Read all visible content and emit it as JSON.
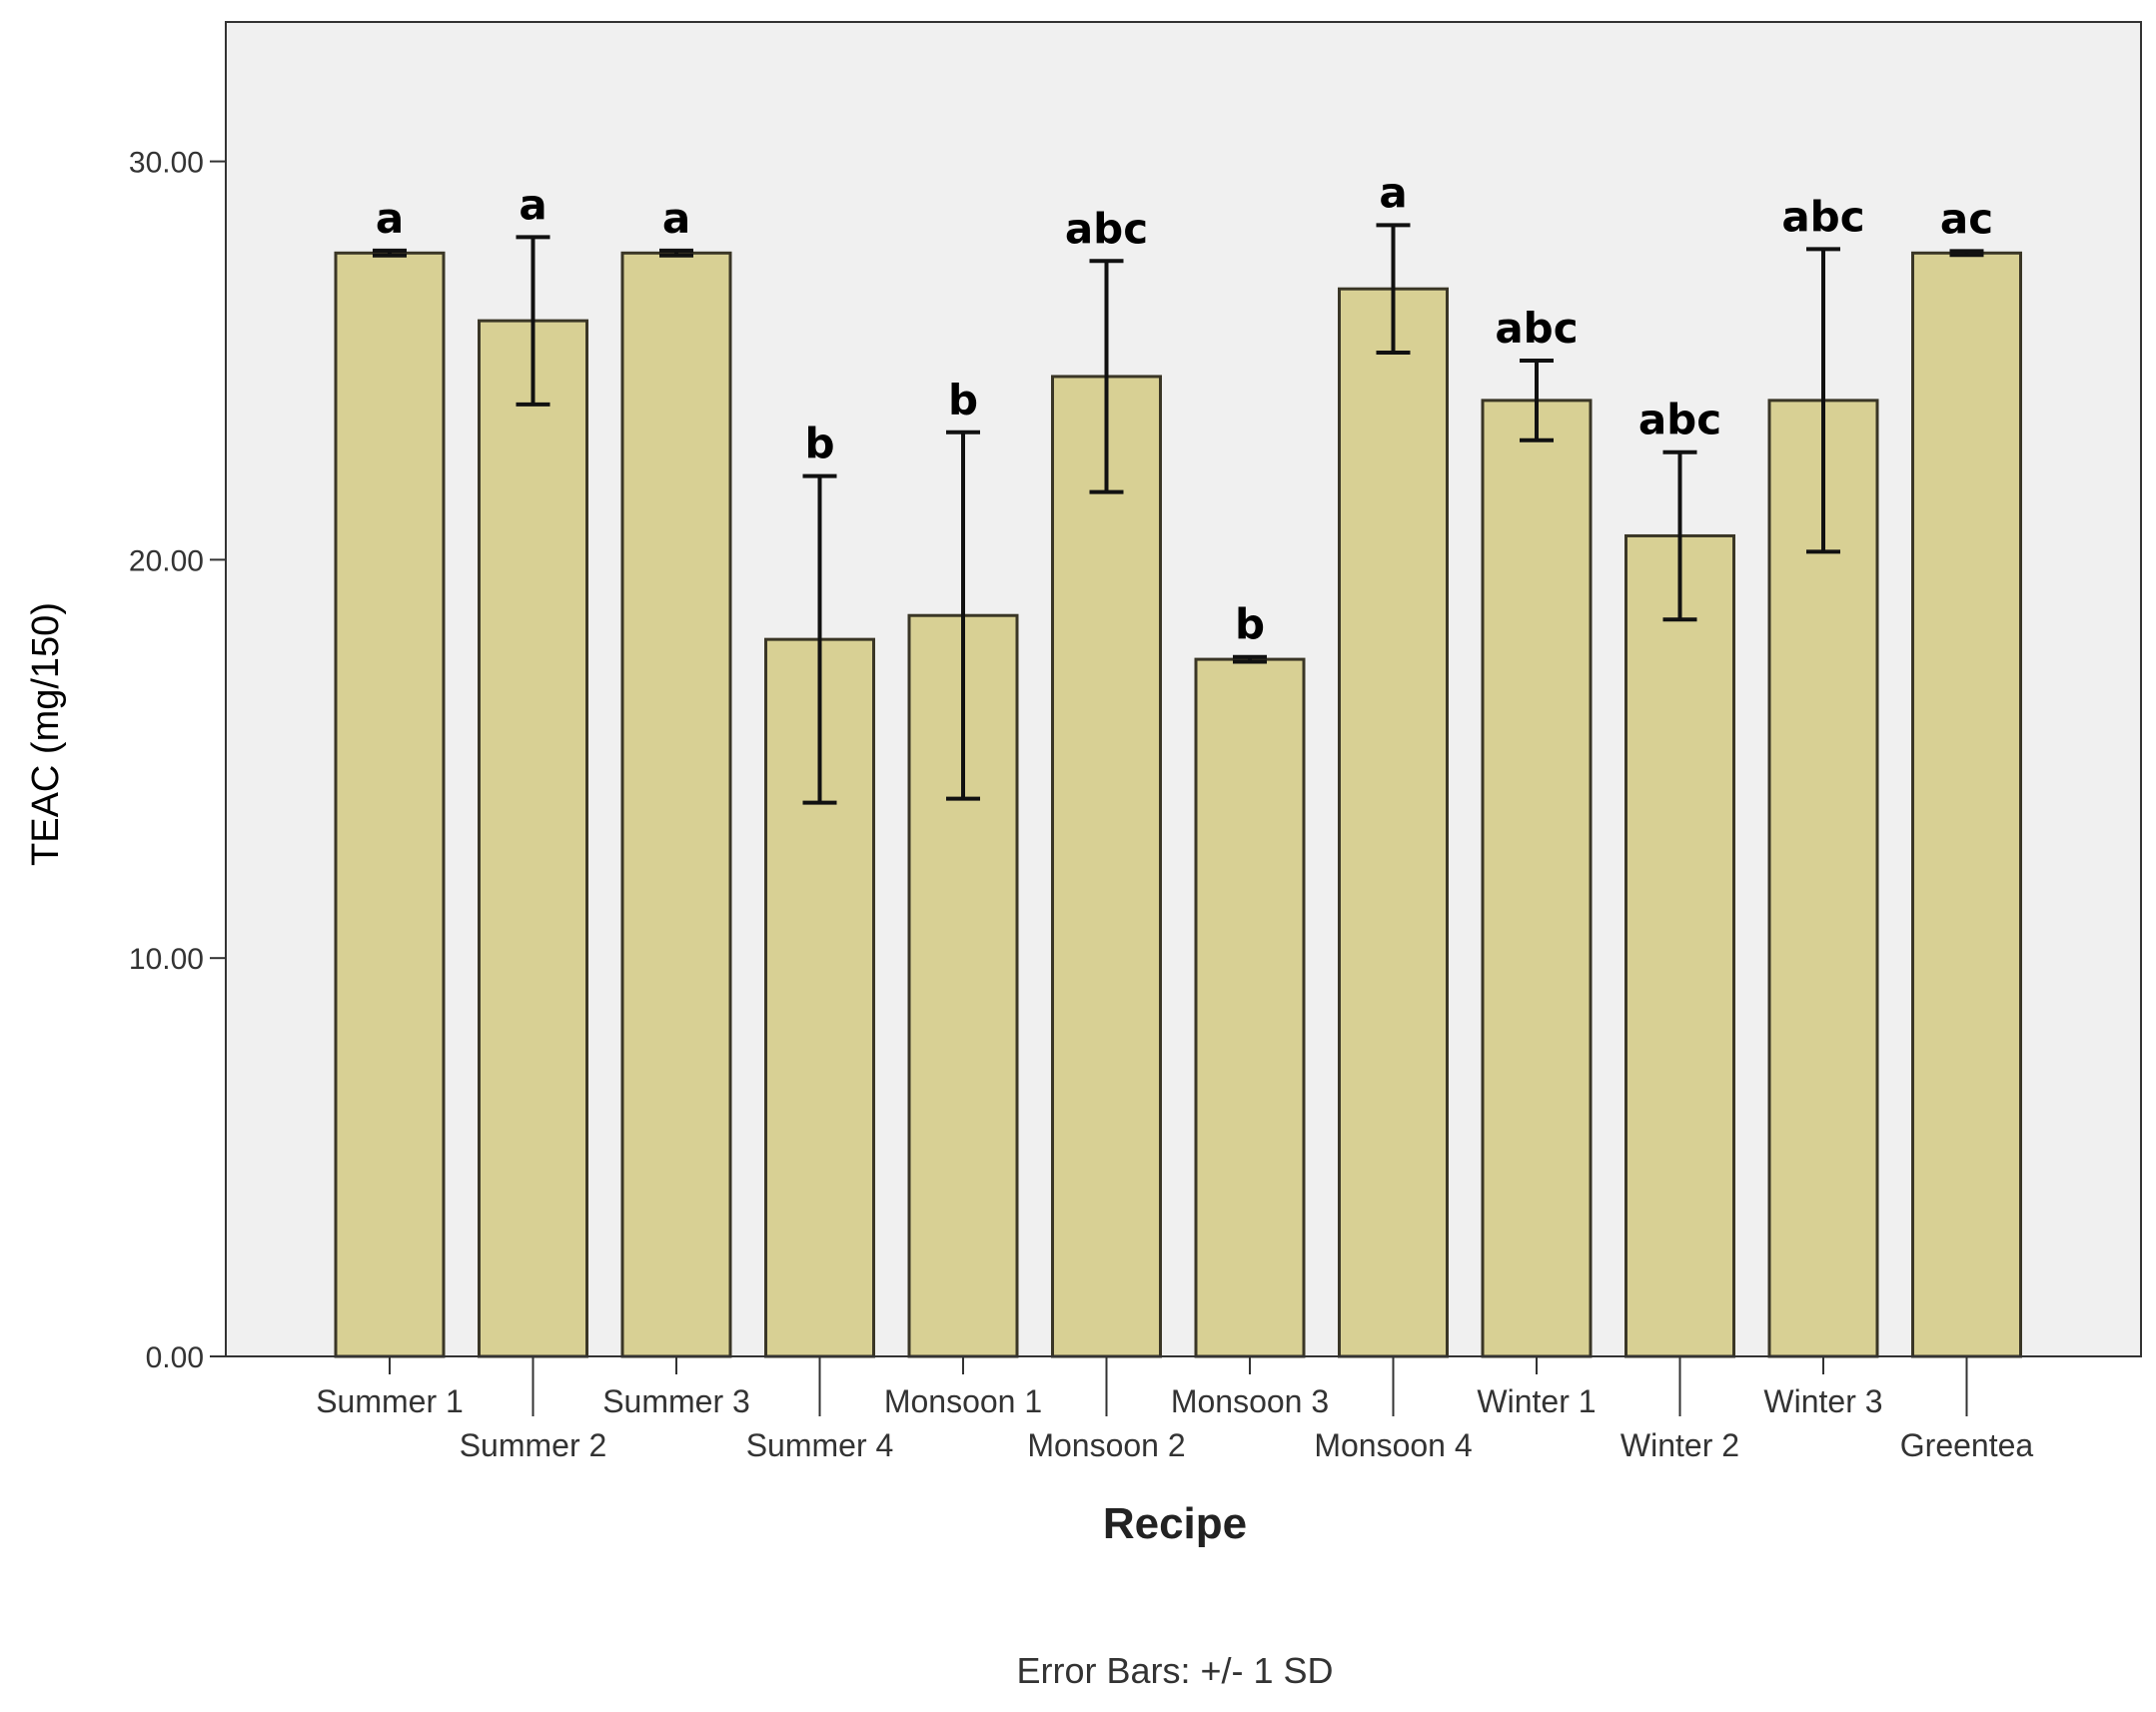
{
  "chart_data": {
    "type": "bar",
    "xlabel": "Recipe",
    "ylabel": "TEAC (mg/150)",
    "footnote": "Error Bars: +/- 1 SD",
    "ylim": [
      0,
      33.5
    ],
    "yticks": [
      0,
      10,
      20,
      30
    ],
    "ytick_labels": [
      "0.00",
      "10.00",
      "20.00",
      "30.00"
    ],
    "grid": false,
    "legend": "none",
    "bar_color": "#d8d094",
    "bar_edge_color": "#3a3626",
    "plot_background": "#f0f0f0",
    "categories": [
      "Summer 1",
      "Summer 2",
      "Summer 3",
      "Summer 4",
      "Monsoon 1",
      "Monsoon 2",
      "Monsoon 3",
      "Monsoon 4",
      "Winter 1",
      "Winter 2",
      "Winter 3",
      "Greentea"
    ],
    "values": [
      27.7,
      26.0,
      27.7,
      18.0,
      18.6,
      24.6,
      17.5,
      26.8,
      24.0,
      20.6,
      24.0,
      27.7
    ],
    "error_sd": [
      0.06,
      2.1,
      0.06,
      4.1,
      4.6,
      2.9,
      0.06,
      1.6,
      1.0,
      2.1,
      3.8,
      0.05
    ],
    "significance_letters": [
      "a",
      "a",
      "a",
      "b",
      "b",
      "abc",
      "b",
      "a",
      "abc",
      "abc",
      "abc",
      "ac"
    ]
  }
}
